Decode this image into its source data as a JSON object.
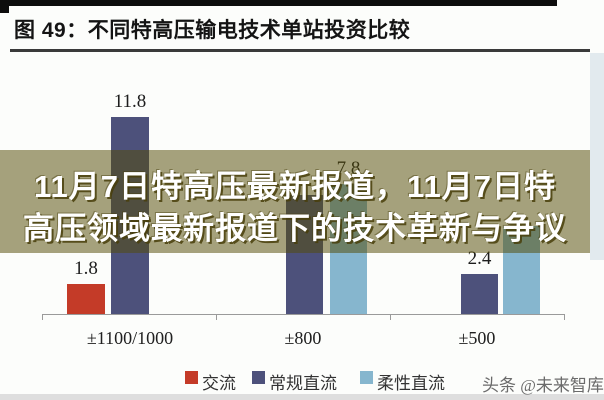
{
  "figure": {
    "title": "图 49：不同特高压输电技术单站投资比较"
  },
  "banner": {
    "line1": "11月7日特高压最新报道，11月7日特",
    "line2": "高压领域最新报道下的技术革新与争议"
  },
  "watermark": "头条 @未来智库",
  "colors": {
    "ac_series": "#c43b28",
    "lcc_series": "#4d517b",
    "vsc_series": "#86b6ce",
    "banner_over_white": "#a5a080",
    "axis": "#9a9a9a"
  },
  "chart_data": {
    "type": "bar",
    "title": "图 49：不同特高压输电技术单站投资比较",
    "categories": [
      "±1100/1000",
      "±800",
      "±500"
    ],
    "series": [
      {
        "name": "交流",
        "color": "#c43b28",
        "values": [
          1.8,
          null,
          null
        ]
      },
      {
        "name": "常规直流",
        "color": "#4d517b",
        "values": [
          11.8,
          7.1,
          2.4
        ]
      },
      {
        "name": "柔性直流",
        "color": "#86b6ce",
        "values": [
          null,
          7.8,
          5.3
        ]
      }
    ],
    "visible_value_labels": [
      "1.8",
      "11.8",
      "7.8",
      "2.4"
    ],
    "note_values_hidden_by_overlay": {
      "常规直流 ±800": "≈7.1 (estimated, label hidden)",
      "柔性直流 ±500": "≈5.3 (estimated, label hidden)"
    },
    "xlabel": "",
    "ylabel": "",
    "ylim": [
      0,
      13
    ],
    "grid": false,
    "legend_position": "bottom"
  },
  "bars": [
    {
      "category": 0,
      "series": 0,
      "value": 1.8,
      "label": "1.8",
      "label_visible": true
    },
    {
      "category": 0,
      "series": 1,
      "value": 11.8,
      "label": "11.8",
      "label_visible": true
    },
    {
      "category": 1,
      "series": 1,
      "value": 7.1,
      "label": "",
      "label_visible": false
    },
    {
      "category": 1,
      "series": 2,
      "value": 7.8,
      "label": "7.8",
      "label_visible": true
    },
    {
      "category": 2,
      "series": 1,
      "value": 2.4,
      "label": "2.4",
      "label_visible": true
    },
    {
      "category": 2,
      "series": 2,
      "value": 5.3,
      "label": "",
      "label_visible": false
    }
  ]
}
